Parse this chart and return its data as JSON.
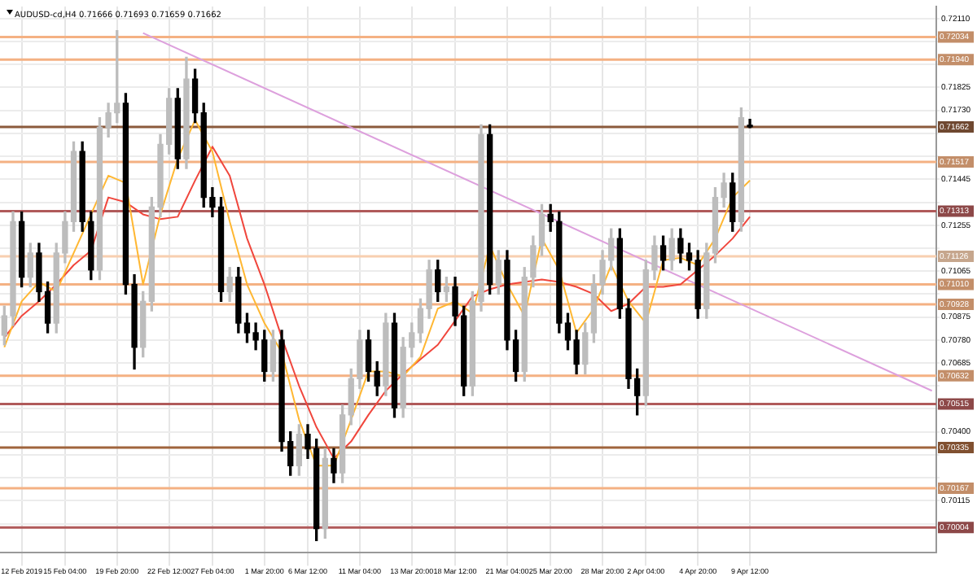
{
  "chart_data": {
    "type": "candlestick",
    "title": "AUDUSD-cd,H4 0.71666 0.71693 0.71659 0.71662",
    "categories": [
      null,
      null,
      "12 Feb 2019",
      null,
      null,
      null,
      null,
      "15 Feb 04:00",
      null,
      null,
      null,
      null,
      null,
      "19 Feb 20:00",
      null,
      null,
      null,
      null,
      null,
      "22 Feb 12:00",
      null,
      null,
      null,
      null,
      "27 Feb 04:00",
      null,
      null,
      null,
      null,
      null,
      "1 Mar 20:00",
      null,
      null,
      null,
      null,
      "6 Mar 12:00",
      null,
      null,
      null,
      null,
      null,
      "11 Mar 04:00",
      null,
      null,
      null,
      null,
      null,
      "13 Mar 20:00",
      null,
      null,
      null,
      null,
      "18 Mar 12:00",
      null,
      null,
      null,
      null,
      null,
      "21 Mar 04:00",
      null,
      null,
      null,
      null,
      "25 Mar 20:00",
      null,
      null,
      null,
      null,
      null,
      "28 Mar 20:00",
      null,
      null,
      null,
      null,
      "2 Apr 04:00",
      null,
      null,
      null,
      null,
      null,
      "4 Apr 20:00",
      null,
      null,
      null,
      null,
      null,
      "9 Apr 12:00",
      null,
      null,
      null,
      null,
      null,
      null,
      null,
      null,
      null,
      null,
      null,
      null,
      null,
      null,
      null,
      null,
      null,
      null,
      null,
      null,
      null
    ],
    "colors": [
      "#bdbdbd",
      "#bdbdbd",
      "#000000",
      "#bdbdbd",
      "#000000",
      "#000000",
      "#bdbdbd",
      "#bdbdbd",
      "#bdbdbd",
      "#000000",
      "#000000",
      "#bdbdbd",
      "#bdbdbd",
      "#bdbdbd",
      "#000000",
      "#000000",
      "#bdbdbd",
      "#bdbdbd",
      "#bdbdbd",
      "#bdbdbd",
      "#000000",
      "#bdbdbd",
      "#000000",
      "#000000",
      "#000000",
      "#000000",
      "#bdbdbd",
      "#000000",
      "#000000",
      "#000000",
      "#000000",
      "#bdbdbd",
      "#000000",
      "#000000",
      "#bdbdbd",
      "#000000",
      "#000000",
      "#bdbdbd",
      "#000000",
      "#bdbdbd",
      "#bdbdbd",
      "#bdbdbd",
      "#000000",
      "#000000",
      "#bdbdbd",
      "#000000",
      "#bdbdbd",
      "#bdbdbd",
      "#bdbdbd",
      "#bdbdbd",
      "#000000",
      "#bdbdbd",
      "#000000",
      "#000000",
      "#bdbdbd",
      "#bdbdbd",
      "#000000",
      "#bdbdbd",
      "#000000",
      "#000000",
      "#bdbdbd",
      "#bdbdbd",
      "#bdbdbd",
      "#000000",
      "#000000",
      "#000000",
      "#000000",
      "#bdbdbd",
      "#bdbdbd",
      "#bdbdbd",
      "#bdbdbd",
      "#000000",
      "#000000",
      "#000000",
      "#bdbdbd",
      "#bdbdbd",
      "#000000",
      "#bdbdbd",
      "#000000",
      "#000000",
      "#000000",
      "#bdbdbd",
      "#bdbdbd",
      "#bdbdbd",
      "#000000",
      "#bdbdbd",
      "#000000",
      null,
      null,
      null,
      null,
      null,
      null,
      null,
      null,
      null,
      null,
      null,
      null,
      null,
      null,
      null,
      null,
      null,
      null,
      null,
      null,
      null
    ],
    "ohlc": [
      [
        0.708,
        0.7092,
        0.7076,
        0.7088
      ],
      [
        0.7088,
        0.7131,
        0.7084,
        0.7127
      ],
      [
        0.7127,
        0.7131,
        0.71,
        0.7104
      ],
      [
        0.7104,
        0.7118,
        0.71,
        0.7114
      ],
      [
        0.7114,
        0.7118,
        0.7094,
        0.7098
      ],
      [
        0.7098,
        0.7102,
        0.7081,
        0.7085
      ],
      [
        0.7085,
        0.7118,
        0.7081,
        0.7114
      ],
      [
        0.7114,
        0.7131,
        0.711,
        0.7127
      ],
      [
        0.7127,
        0.716,
        0.7123,
        0.7156
      ],
      [
        0.7156,
        0.716,
        0.7123,
        0.7127
      ],
      [
        0.7127,
        0.7131,
        0.7103,
        0.7107
      ],
      [
        0.7107,
        0.717,
        0.7103,
        0.7166
      ],
      [
        0.7166,
        0.7176,
        0.7162,
        0.7172
      ],
      [
        0.7172,
        0.7206,
        0.7168,
        0.7176
      ],
      [
        0.7176,
        0.718,
        0.7097,
        0.7101
      ],
      [
        0.7101,
        0.7105,
        0.7066,
        0.7075
      ],
      [
        0.7075,
        0.7098,
        0.7071,
        0.7094
      ],
      [
        0.7094,
        0.7137,
        0.709,
        0.7133
      ],
      [
        0.7133,
        0.7163,
        0.7129,
        0.7159
      ],
      [
        0.7159,
        0.7182,
        0.7155,
        0.7178
      ],
      [
        0.7178,
        0.7182,
        0.7149,
        0.7153
      ],
      [
        0.7153,
        0.7195,
        0.7149,
        0.7186
      ],
      [
        0.7186,
        0.719,
        0.7168,
        0.7172
      ],
      [
        0.7172,
        0.7176,
        0.7133,
        0.7137
      ],
      [
        0.7137,
        0.7141,
        0.7129,
        0.7133
      ],
      [
        0.7133,
        0.7137,
        0.7094,
        0.7098
      ],
      [
        0.7098,
        0.7108,
        0.7094,
        0.7104
      ],
      [
        0.7104,
        0.7108,
        0.7081,
        0.7085
      ],
      [
        0.7085,
        0.7089,
        0.7077,
        0.7081
      ],
      [
        0.7081,
        0.7085,
        0.7074,
        0.7078
      ],
      [
        0.7078,
        0.7082,
        0.7061,
        0.7065
      ],
      [
        0.7065,
        0.7082,
        0.7061,
        0.7078
      ],
      [
        0.7078,
        0.7082,
        0.7032,
        0.7036
      ],
      [
        0.7036,
        0.704,
        0.7022,
        0.7026
      ],
      [
        0.7026,
        0.7043,
        0.7022,
        0.7039
      ],
      [
        0.7039,
        0.7043,
        0.7029,
        0.7033
      ],
      [
        0.7033,
        0.7037,
        0.6995,
        0.7
      ],
      [
        0.7,
        0.7033,
        0.6996,
        0.7029
      ],
      [
        0.7029,
        0.7033,
        0.7019,
        0.7023
      ],
      [
        0.7023,
        0.7051,
        0.7019,
        0.7047
      ],
      [
        0.7047,
        0.7066,
        0.7043,
        0.7062
      ],
      [
        0.7062,
        0.7082,
        0.7058,
        0.7078
      ],
      [
        0.7078,
        0.7082,
        0.7061,
        0.7065
      ],
      [
        0.7065,
        0.7069,
        0.7055,
        0.7059
      ],
      [
        0.7059,
        0.7089,
        0.7055,
        0.7085
      ],
      [
        0.7085,
        0.7089,
        0.7046,
        0.705
      ],
      [
        0.705,
        0.7079,
        0.7046,
        0.7075
      ],
      [
        0.7075,
        0.7085,
        0.7071,
        0.7081
      ],
      [
        0.7081,
        0.7095,
        0.7077,
        0.7091
      ],
      [
        0.7091,
        0.7111,
        0.7087,
        0.7107
      ],
      [
        0.7107,
        0.7111,
        0.7094,
        0.7098
      ],
      [
        0.7098,
        0.7104,
        0.7094,
        0.71
      ],
      [
        0.71,
        0.7104,
        0.7084,
        0.7088
      ],
      [
        0.7088,
        0.7092,
        0.7055,
        0.7059
      ],
      [
        0.7059,
        0.7098,
        0.7055,
        0.7094
      ],
      [
        0.7094,
        0.7167,
        0.709,
        0.7163
      ],
      [
        0.7163,
        0.7167,
        0.7097,
        0.7101
      ],
      [
        0.7101,
        0.7115,
        0.7097,
        0.7111
      ],
      [
        0.7111,
        0.7115,
        0.7074,
        0.7078
      ],
      [
        0.7078,
        0.7082,
        0.7061,
        0.7065
      ],
      [
        0.7065,
        0.7108,
        0.7061,
        0.7104
      ],
      [
        0.7104,
        0.7121,
        0.71,
        0.7117
      ],
      [
        0.7117,
        0.7134,
        0.7113,
        0.713
      ],
      [
        0.713,
        0.7134,
        0.7123,
        0.7127
      ],
      [
        0.7127,
        0.7131,
        0.7081,
        0.7085
      ],
      [
        0.7085,
        0.7089,
        0.7074,
        0.7078
      ],
      [
        0.7078,
        0.7082,
        0.7064,
        0.7068
      ],
      [
        0.7068,
        0.7085,
        0.7064,
        0.7081
      ],
      [
        0.7081,
        0.7105,
        0.7077,
        0.7101
      ],
      [
        0.7101,
        0.7115,
        0.7097,
        0.7111
      ],
      [
        0.7111,
        0.7124,
        0.7107,
        0.712
      ],
      [
        0.712,
        0.7124,
        0.7087,
        0.7091
      ],
      [
        0.7091,
        0.7095,
        0.7058,
        0.7062
      ],
      [
        0.7062,
        0.7066,
        0.7047,
        0.7055
      ],
      [
        0.7055,
        0.7111,
        0.7051,
        0.7107
      ],
      [
        0.7107,
        0.7121,
        0.7103,
        0.7117
      ],
      [
        0.7117,
        0.7121,
        0.7107,
        0.7111
      ],
      [
        0.7111,
        0.7124,
        0.7107,
        0.712
      ],
      [
        0.712,
        0.7124,
        0.711,
        0.7114
      ],
      [
        0.7114,
        0.7118,
        0.7107,
        0.7111
      ],
      [
        0.7111,
        0.7115,
        0.7087,
        0.7091
      ],
      [
        0.7091,
        0.7118,
        0.7087,
        0.7114
      ],
      [
        0.7114,
        0.7141,
        0.711,
        0.7137
      ],
      [
        0.7137,
        0.7147,
        0.7133,
        0.7143
      ],
      [
        0.7143,
        0.7147,
        0.7123,
        0.7127
      ],
      [
        0.7127,
        0.7174,
        0.7123,
        0.717
      ],
      [
        0.71666,
        0.71693,
        0.71659,
        0.71662
      ],
      null,
      null,
      null,
      null,
      null,
      null,
      null,
      null,
      null,
      null,
      null,
      null,
      null,
      null,
      null,
      null,
      null,
      null,
      null,
      null,
      null
    ],
    "series": [
      {
        "type": "line",
        "color": "#ffb732",
        "values": [
          0.7075,
          null,
          0.7094,
          null,
          0.7102,
          null,
          0.7098,
          null,
          0.7114,
          null,
          0.713,
          null,
          0.7146,
          null,
          0.7143,
          null,
          0.7101,
          null,
          0.713,
          null,
          0.7153,
          null,
          0.7169,
          null,
          0.7156,
          null,
          0.7127,
          null,
          0.7101,
          null,
          0.7085,
          null,
          0.7073,
          null,
          0.7045,
          null,
          0.7026,
          null,
          0.7026,
          null,
          0.7045,
          null,
          0.7065,
          null,
          0.7065,
          null,
          0.7063,
          null,
          0.7071,
          null,
          0.7091,
          null,
          0.7094,
          null,
          0.7089,
          null,
          0.7117,
          null,
          0.7101,
          null,
          0.7088,
          null,
          0.712,
          null,
          0.7107,
          null,
          0.7081,
          null,
          0.7091,
          null,
          0.7109,
          null,
          0.7094,
          null,
          0.7085,
          null,
          0.7111,
          null,
          0.7112,
          null,
          0.7109,
          null,
          0.712,
          null,
          0.7137,
          null,
          0.7144,
          null,
          null,
          null,
          null,
          null,
          null,
          null,
          null,
          null,
          null,
          null,
          null,
          null,
          null,
          null,
          null,
          null,
          null,
          null,
          null,
          null
        ]
      },
      {
        "type": "line",
        "color": "#f0463c",
        "values": [
          0.7079,
          null,
          0.7088,
          null,
          0.7094,
          null,
          0.7101,
          null,
          0.7109,
          null,
          0.7115,
          null,
          0.7137,
          null,
          0.7135,
          null,
          0.713,
          null,
          0.7128,
          null,
          0.7129,
          null,
          0.7144,
          null,
          0.7158,
          null,
          0.7146,
          null,
          0.712,
          null,
          0.7101,
          null,
          0.7079,
          null,
          0.7059,
          null,
          0.7042,
          null,
          0.7029,
          null,
          0.7036,
          null,
          0.7047,
          null,
          0.7057,
          null,
          0.7064,
          null,
          0.707,
          null,
          0.7076,
          null,
          0.7086,
          null,
          0.7096,
          null,
          0.7099,
          null,
          0.7101,
          null,
          0.7102,
          null,
          0.7103,
          null,
          0.7102,
          null,
          0.71,
          null,
          0.7097,
          null,
          0.709,
          null,
          0.7093,
          null,
          0.71,
          null,
          0.71,
          null,
          0.7101,
          null,
          0.7107,
          null,
          0.7113,
          null,
          0.712,
          null,
          0.7129,
          null,
          null,
          null,
          null,
          null,
          null,
          null,
          null,
          null,
          null,
          null,
          null,
          null,
          null,
          null,
          null,
          null,
          null,
          null,
          null,
          null
        ]
      },
      {
        "type": "line",
        "color": "#dda0dd",
        "values": [
          null,
          null,
          null,
          null,
          null,
          null,
          null,
          null,
          null,
          null,
          null,
          null,
          null,
          null,
          null,
          null,
          0.7205,
          null,
          null,
          null,
          null,
          null,
          null,
          null,
          null,
          null,
          null,
          null,
          null,
          null,
          null,
          null,
          null,
          null,
          null,
          null,
          null,
          null,
          null,
          null,
          null,
          null,
          null,
          null,
          null,
          null,
          null,
          null,
          null,
          null,
          null,
          null,
          null,
          null,
          null,
          null,
          null,
          null,
          null,
          null,
          null,
          null,
          null,
          null,
          null,
          null,
          null,
          null,
          null,
          null,
          null,
          null,
          null,
          null,
          null,
          null,
          null,
          null,
          null,
          null,
          null,
          null,
          null,
          null,
          null,
          null,
          null,
          null,
          null,
          null,
          null,
          null,
          null,
          null,
          null,
          null,
          null,
          null,
          null,
          null,
          null,
          null,
          null,
          null,
          null,
          null,
          null,
          0.7057
        ]
      }
    ],
    "ylim": [
      0.699,
      0.7216
    ],
    "yticks": [
      {
        "value": 0.7002,
        "label": null
      },
      {
        "value": 0.70115,
        "label": "0.70115"
      },
      {
        "value": 0.7021,
        "label": null
      },
      {
        "value": 0.70305,
        "label": null
      },
      {
        "value": 0.704,
        "label": "0.70400"
      },
      {
        "value": 0.70495,
        "label": null
      },
      {
        "value": 0.7059,
        "label": null
      },
      {
        "value": 0.70685,
        "label": "0.70685"
      },
      {
        "value": 0.7078,
        "label": "0.70780"
      },
      {
        "value": 0.70875,
        "label": "0.70875"
      },
      {
        "value": 0.7097,
        "label": null
      },
      {
        "value": 0.71065,
        "label": "0.71065"
      },
      {
        "value": 0.7116,
        "label": null
      },
      {
        "value": 0.71255,
        "label": "0.71255"
      },
      {
        "value": 0.7135,
        "label": null
      },
      {
        "value": 0.71445,
        "label": "0.71445"
      },
      {
        "value": 0.7154,
        "label": null
      },
      {
        "value": 0.71635,
        "label": null
      },
      {
        "value": 0.7173,
        "label": "0.71730"
      },
      {
        "value": 0.71825,
        "label": "0.71825"
      },
      {
        "value": 0.7192,
        "label": null
      },
      {
        "value": 0.72015,
        "label": null
      },
      {
        "value": 0.7211,
        "label": "0.72110"
      }
    ],
    "ref_lines": [
      {
        "axis": "y",
        "value": 0.72034,
        "label": "0.72034",
        "color": "#f4b183"
      },
      {
        "axis": "y",
        "value": 0.7194,
        "label": "0.71940",
        "color": "#f4b183"
      },
      {
        "axis": "y",
        "value": 0.71662,
        "label": "0.71662",
        "color": "#8b5a3c"
      },
      {
        "axis": "y",
        "value": 0.71517,
        "label": "0.71517",
        "color": "#f4b183"
      },
      {
        "axis": "y",
        "value": 0.71313,
        "label": "0.71313",
        "color": "#b05a5a"
      },
      {
        "axis": "y",
        "value": 0.71126,
        "label": "0.71126",
        "color": "#f8cfb0"
      },
      {
        "axis": "y",
        "value": 0.7101,
        "label": "0.71010",
        "color": "#f4b183"
      },
      {
        "axis": "y",
        "value": 0.70928,
        "label": "0.70928",
        "color": "#f4b183"
      },
      {
        "axis": "y",
        "value": 0.70632,
        "label": "0.70632",
        "color": "#f4b183"
      },
      {
        "axis": "y",
        "value": 0.70515,
        "label": "0.70515",
        "color": "#b05a5a"
      },
      {
        "axis": "y",
        "value": 0.70335,
        "label": "0.70335",
        "color": "#a0643c"
      },
      {
        "axis": "y",
        "value": 0.70167,
        "label": "0.70167",
        "color": "#f4b183"
      },
      {
        "axis": "y",
        "value": 0.70004,
        "label": "0.70004",
        "color": "#b05a5a"
      }
    ],
    "grid": true
  }
}
